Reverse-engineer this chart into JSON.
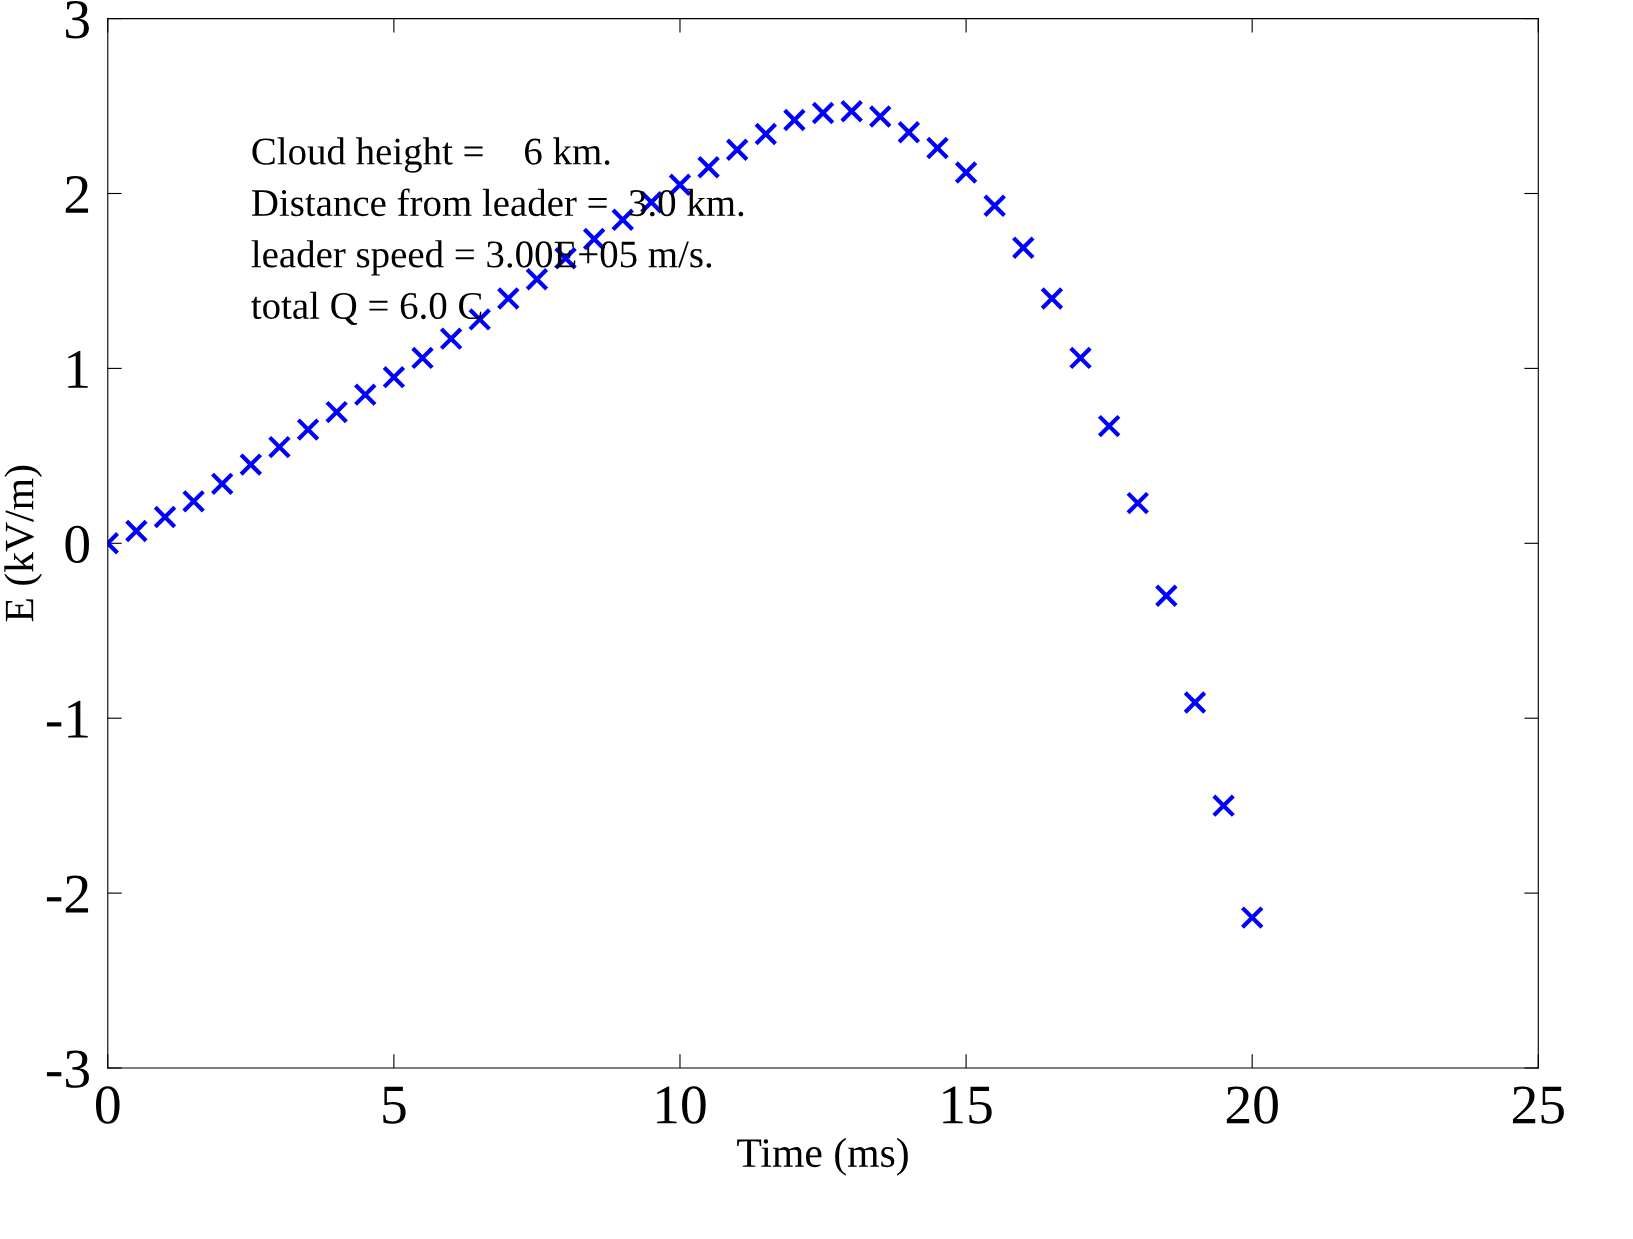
{
  "chart_data": {
    "type": "scatter",
    "xlabel": "Time (ms)",
    "ylabel": "E (kV/m)",
    "xlim": [
      0,
      25
    ],
    "ylim": [
      -3,
      3
    ],
    "xticks": [
      0,
      5,
      10,
      15,
      20,
      25
    ],
    "yticks": [
      -3,
      -2,
      -1,
      0,
      1,
      2,
      3
    ],
    "grid": false,
    "marker": "cross",
    "annotations": [
      "Cloud height =    6 km.",
      "Distance from leader =  3.0 km.",
      "leader speed = 3.00E+05 m/s.",
      "total Q = 6.0 C"
    ],
    "series": [
      {
        "color": "#0000ff",
        "x": [
          0,
          0.5,
          1,
          1.5,
          2,
          2.5,
          3,
          3.5,
          4,
          4.5,
          5,
          5.5,
          6,
          6.5,
          7,
          7.5,
          8,
          8.5,
          9,
          9.5,
          10,
          10.5,
          11,
          11.5,
          12,
          12.5,
          13,
          13.5,
          14,
          14.5,
          15,
          15.5,
          16,
          16.5,
          17,
          17.5,
          18,
          18.5,
          19,
          19.5,
          20
        ],
        "values": [
          0,
          0.07,
          0.15,
          0.24,
          0.34,
          0.45,
          0.55,
          0.65,
          0.75,
          0.85,
          0.95,
          1.06,
          1.17,
          1.28,
          1.4,
          1.51,
          1.63,
          1.74,
          1.85,
          1.95,
          2.05,
          2.15,
          2.25,
          2.34,
          2.42,
          2.46,
          2.47,
          2.44,
          2.35,
          2.26,
          2.12,
          1.93,
          1.69,
          1.4,
          1.06,
          0.67,
          0.23,
          -0.3,
          -0.91,
          -1.5,
          -2.14
        ]
      }
    ]
  }
}
